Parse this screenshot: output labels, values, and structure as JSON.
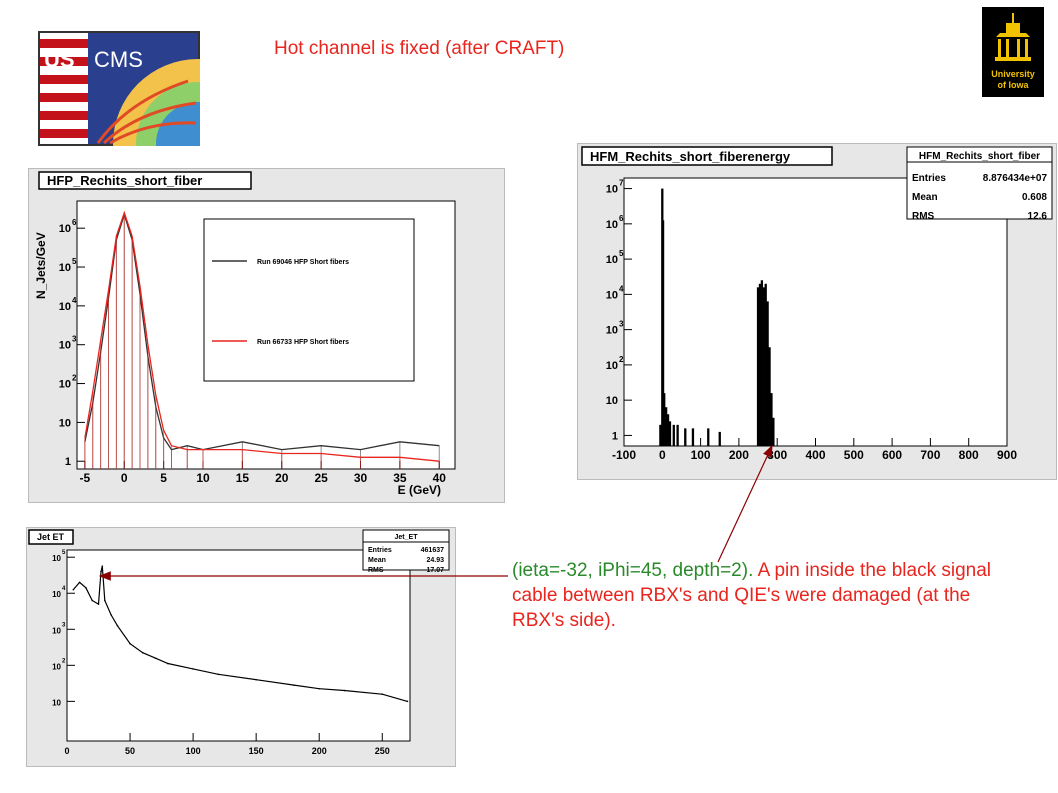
{
  "slide": {
    "title": "Hot channel is fixed (after CRAFT)",
    "note_green": "(ieta=-32, iPhi=45, depth=2).",
    "note_red": " A pin inside the black signal cable between RBX's and QIE's were damaged (at the RBX's side).",
    "logo_left_text": "US CMS",
    "logo_right_text": "University of Iowa"
  },
  "colors": {
    "accent_red": "#e8251e",
    "green": "#2a8a2a",
    "frame_bg": "#e7e7e7",
    "plot_bg": "#ffffff"
  },
  "chart_data": [
    {
      "type": "line",
      "title": "HFP_Rechits_short_fiber",
      "xlabel": "E (GeV)",
      "ylabel": "N_Jets/GeV",
      "xlim": [
        -6,
        42
      ],
      "ylim_log10": [
        -0.2,
        6.7
      ],
      "log_y": true,
      "x_ticks": [
        -5,
        0,
        5,
        10,
        15,
        20,
        25,
        30,
        35,
        40
      ],
      "y_ticks": [
        {
          "v": 0,
          "label": "1"
        },
        {
          "v": 1,
          "label": "10"
        },
        {
          "v": 2,
          "label": "10"
        },
        {
          "v": 3,
          "label": "10"
        },
        {
          "v": 4,
          "label": "10"
        },
        {
          "v": 5,
          "label": "10"
        },
        {
          "v": 6,
          "label": "10"
        }
      ],
      "legend": {
        "placement": "top-right",
        "entries": [
          "Run 69046 HFP Short fibers",
          "Run 66733 HFP Short fibers"
        ]
      },
      "series": [
        {
          "name": "Run 69046 HFP Short fibers",
          "color": "#333333",
          "x": [
            -5,
            -4,
            -3,
            -2,
            -1,
            0,
            1,
            2,
            3,
            4,
            5,
            6,
            8,
            10,
            15,
            20,
            25,
            30,
            35,
            40
          ],
          "log10_y": [
            0.5,
            1.5,
            2.8,
            4.2,
            5.7,
            6.35,
            5.7,
            4.3,
            2.7,
            1.4,
            0.6,
            0.3,
            0.4,
            0.3,
            0.5,
            0.3,
            0.4,
            0.3,
            0.5,
            0.4
          ]
        },
        {
          "name": "Run 66733 HFP Short fibers",
          "color": "#e8251e",
          "x": [
            -5,
            -4,
            -3,
            -2,
            -1,
            0,
            1,
            2,
            3,
            4,
            5,
            6,
            8,
            10,
            15,
            20,
            25,
            30,
            35,
            40
          ],
          "log10_y": [
            0.6,
            1.8,
            3.1,
            4.4,
            5.8,
            6.4,
            5.8,
            4.5,
            3.0,
            1.7,
            0.8,
            0.4,
            0.3,
            0.3,
            0.3,
            0.2,
            0.2,
            0.1,
            0.1,
            0.0
          ]
        }
      ]
    },
    {
      "type": "bar",
      "title": "HFM_Rechits_short_fiberenergy",
      "xlim": [
        -100,
        900
      ],
      "ylim_log10": [
        -0.3,
        7.3
      ],
      "log_y": true,
      "x_ticks": [
        -100,
        0,
        100,
        200,
        300,
        400,
        500,
        600,
        700,
        800,
        900
      ],
      "y_ticks": [
        {
          "v": 0,
          "label": "1"
        },
        {
          "v": 1,
          "label": "10"
        },
        {
          "v": 2,
          "label": "10"
        },
        {
          "v": 3,
          "label": "10"
        },
        {
          "v": 4,
          "label": "10"
        },
        {
          "v": 5,
          "label": "10"
        },
        {
          "v": 6,
          "label": "10"
        },
        {
          "v": 7,
          "label": "10"
        }
      ],
      "stats": {
        "title": "HFM_Rechits_short_fiber",
        "Entries": "8.876434e+07",
        "Mean": "0.608",
        "RMS": "12.6"
      },
      "x": [
        -5,
        0,
        2,
        5,
        10,
        15,
        20,
        30,
        40,
        60,
        80,
        120,
        150,
        250,
        255,
        260,
        265,
        270,
        275,
        280,
        285,
        290
      ],
      "log10_y": [
        0.3,
        7.0,
        6.1,
        1.2,
        0.8,
        0.6,
        0.4,
        0.3,
        0.3,
        0.2,
        0.2,
        0.2,
        0.1,
        4.2,
        4.3,
        4.4,
        4.2,
        4.3,
        3.8,
        2.5,
        1.2,
        0.5
      ]
    },
    {
      "type": "line",
      "title": "Jet ET",
      "xlim": [
        0,
        272
      ],
      "ylim_log10": [
        -0.1,
        5.2
      ],
      "log_y": true,
      "x_ticks": [
        0,
        50,
        100,
        150,
        200,
        250
      ],
      "y_ticks": [
        {
          "v": 1,
          "label": "10"
        },
        {
          "v": 2,
          "label": "10"
        },
        {
          "v": 3,
          "label": "10"
        },
        {
          "v": 4,
          "label": "10"
        },
        {
          "v": 5,
          "label": "10"
        }
      ],
      "stats": {
        "title": "Jet_ET",
        "Entries": "461637",
        "Mean": "24.93",
        "RMS": "17.07"
      },
      "x": [
        5,
        10,
        15,
        20,
        25,
        27,
        28,
        30,
        35,
        40,
        50,
        60,
        70,
        80,
        100,
        120,
        150,
        180,
        200,
        220,
        250,
        270
      ],
      "log10_y": [
        4.1,
        4.3,
        4.15,
        3.8,
        3.7,
        4.6,
        4.75,
        3.8,
        3.4,
        3.1,
        2.6,
        2.35,
        2.2,
        2.05,
        1.9,
        1.75,
        1.6,
        1.45,
        1.35,
        1.3,
        1.2,
        1.0
      ]
    }
  ]
}
